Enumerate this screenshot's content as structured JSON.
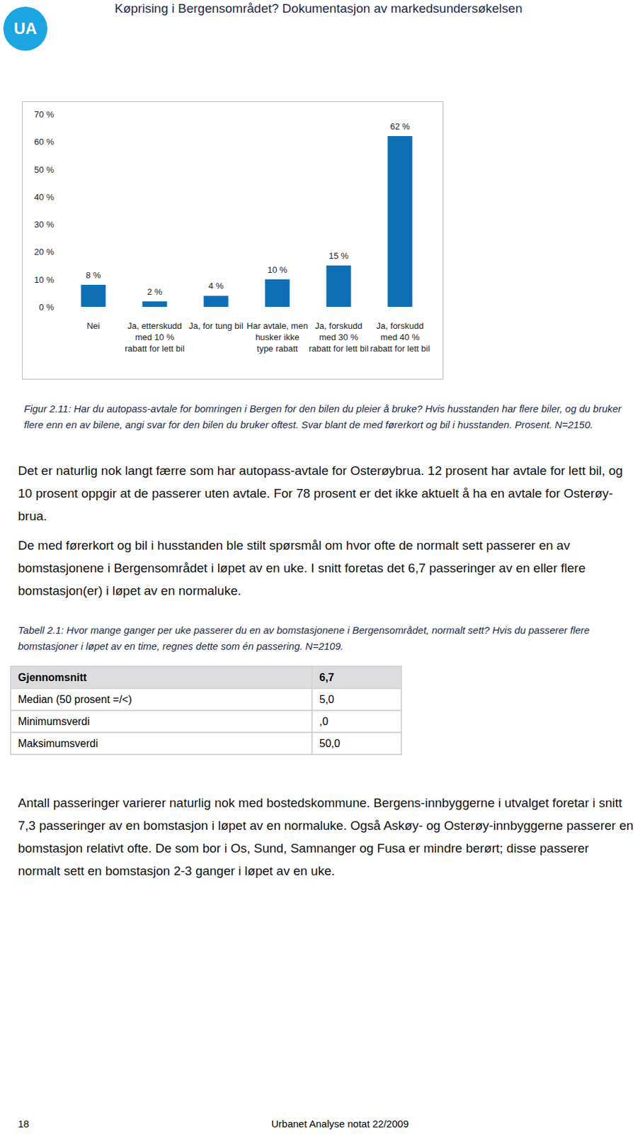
{
  "header": {
    "logo": "UA",
    "title": "Køprising i Bergensområdet? Dokumentasjon av markedsundersøkelsen"
  },
  "chart_data": {
    "type": "bar",
    "categories": [
      "Nei",
      "Ja, etterskudd med 10 % rabatt for lett bil",
      "Ja, for tung bil",
      "Har avtale, men husker ikke type rabatt",
      "Ja, forskudd med 30 % rabatt for lett bil",
      "Ja, forskudd med 40 % rabatt for lett bil"
    ],
    "values": [
      8,
      2,
      4,
      10,
      15,
      62
    ],
    "value_labels": [
      "8 %",
      "2 %",
      "4 %",
      "10 %",
      "15 %",
      "62 %"
    ],
    "color": "#0f6fb5",
    "ylim": [
      0,
      70
    ],
    "yticks": [
      {
        "value": 0,
        "label": "0 %"
      },
      {
        "value": 10,
        "label": "10 %"
      },
      {
        "value": 20,
        "label": "20 %"
      },
      {
        "value": 30,
        "label": "30 %"
      },
      {
        "value": 40,
        "label": "40 %"
      },
      {
        "value": 50,
        "label": "50 %"
      },
      {
        "value": 60,
        "label": "60 %"
      },
      {
        "value": 70,
        "label": "70 %"
      }
    ],
    "grid": false,
    "data_labels": true
  },
  "figure_caption": "Figur 2.11: Har du autopass-avtale for bomringen i Bergen for den bilen du pleier å bruke? Hvis husstanden har flere biler, og du bruker flere enn en av bilene, angi svar for den bilen du bruker oftest.  Svar blant de med førerkort og bil i husstanden. Prosent. N=2150.",
  "paragraphs": [
    "Det er naturlig nok langt færre som har autopass-avtale for Osterøybrua. 12 prosent har avtale for lett bil, og 10 prosent oppgir at de passerer uten avtale. For 78 prosent er det ikke aktuelt å ha en avtale for Osterøy-brua.",
    "De med førerkort og bil i husstanden ble stilt spørsmål om hvor ofte de normalt sett passerer en av bomstasjonene i Bergensområdet i løpet av en uke. I snitt foretas det 6,7 passeringer av en eller flere bomstasjon(er) i løpet av en normaluke."
  ],
  "table_caption": "Tabell 2.1: Hvor mange ganger per uke passerer du en av bomstasjonene i Bergensområdet, normalt sett? Hvis du passerer flere bomstasjoner i løpet av en time, regnes dette som én passering. N=2109.",
  "table": {
    "rows": [
      [
        "Gjennomsnitt",
        "6,7"
      ],
      [
        "Median (50 prosent =/<)",
        "5,0"
      ],
      [
        "Minimumsverdi",
        ",0"
      ],
      [
        "Maksimumsverdi",
        "50,0"
      ]
    ]
  },
  "paragraphs_after": [
    "Antall passeringer varierer naturlig nok med bostedskommune. Bergens-innbyggerne i utvalget foretar i snitt 7,3 passeringer av en bomstasjon i løpet av en normaluke. Også Askøy- og Osterøy-innbyggerne passerer en bomstasjon relativt ofte. De som bor i Os, Sund, Samnanger og Fusa er mindre berørt; disse passerer normalt sett en bomstasjon 2-3 ganger i løpet av en uke."
  ],
  "footer": {
    "page": "18",
    "source": "Urbanet Analyse notat 22/2009"
  }
}
